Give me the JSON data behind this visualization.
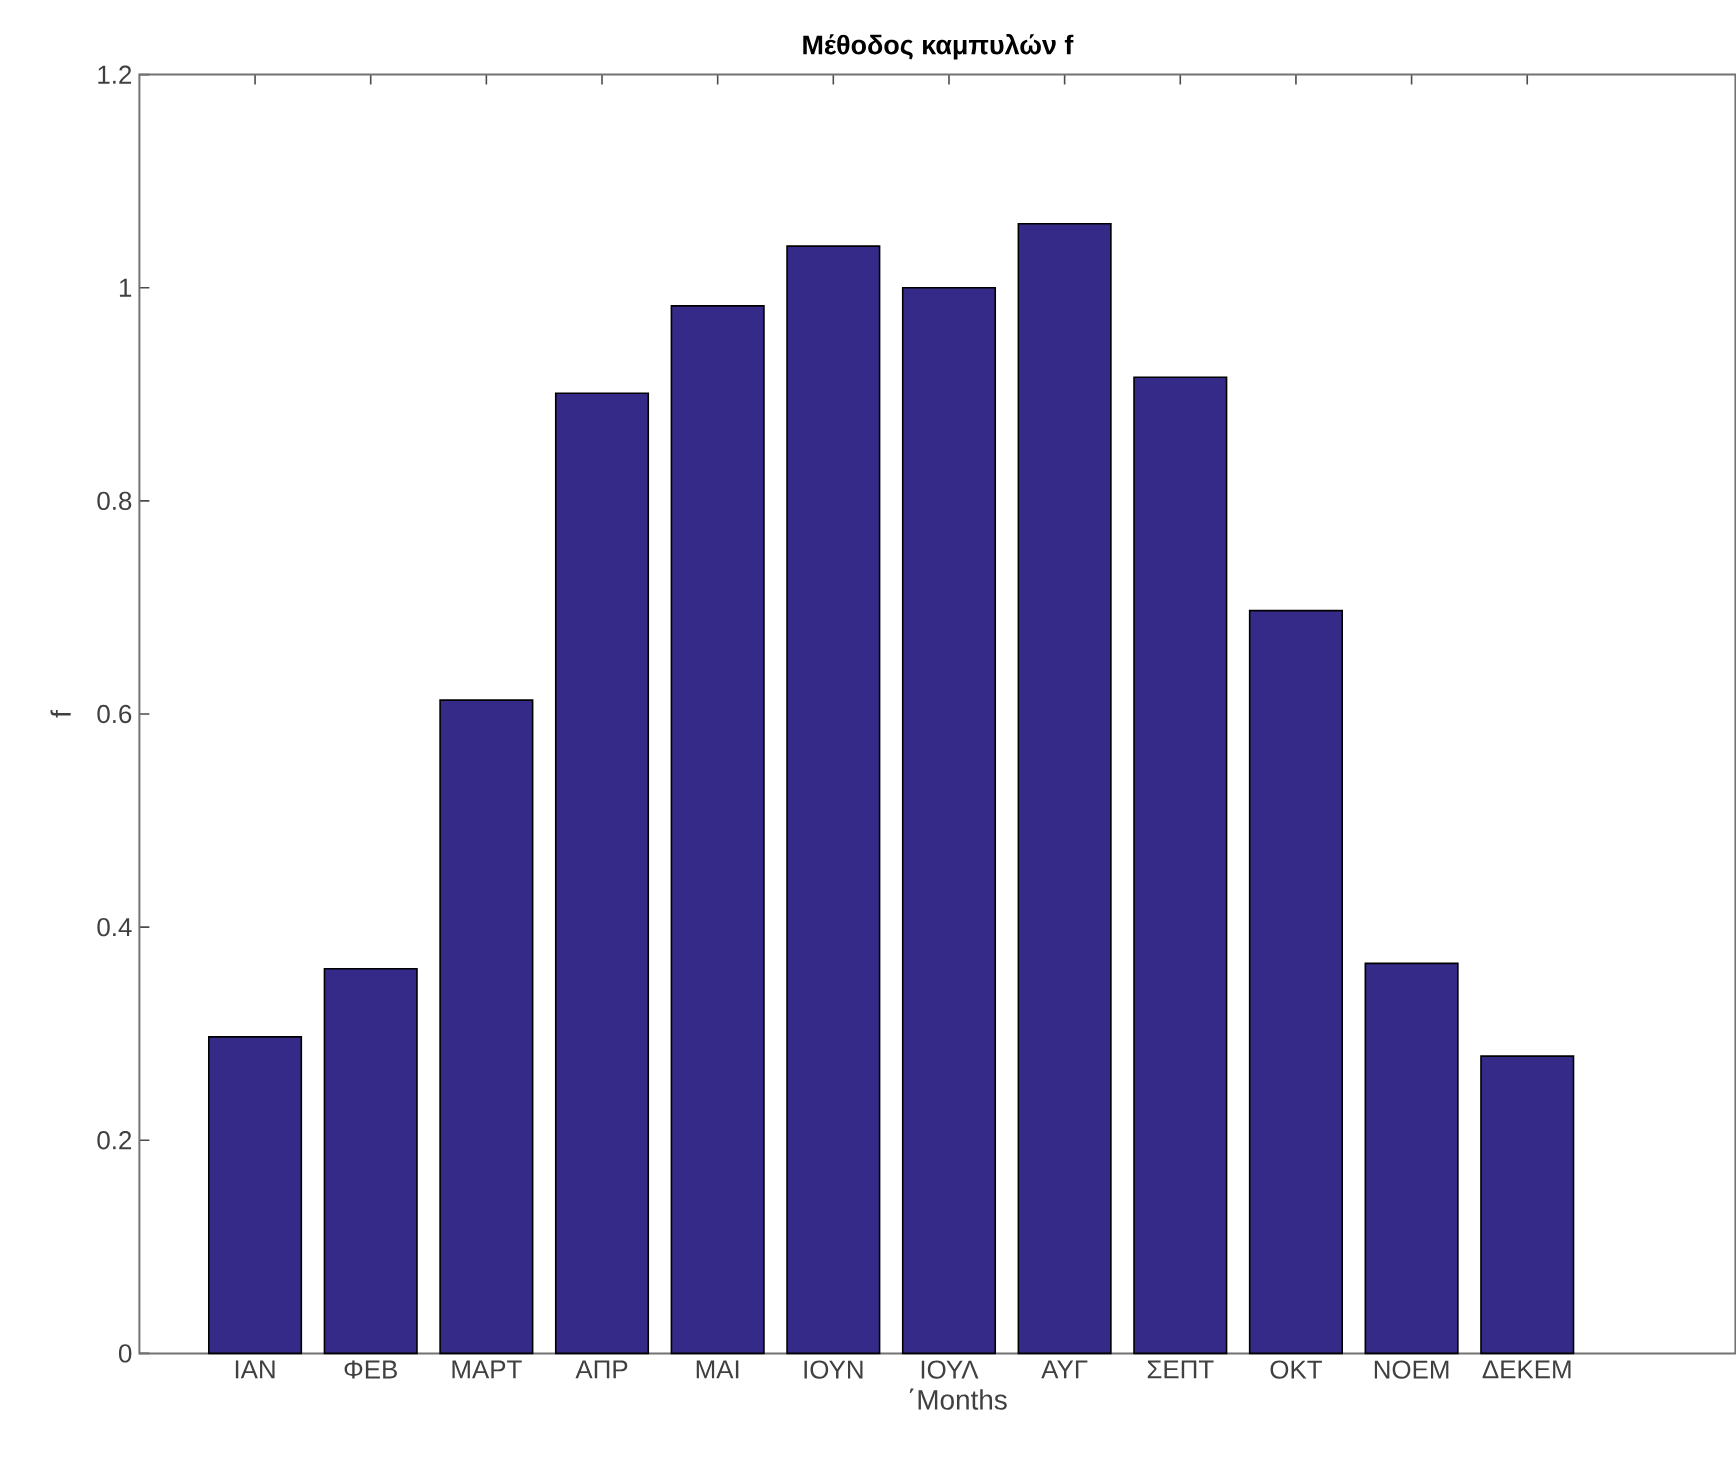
{
  "chart_data": {
    "type": "bar",
    "title": "Μέθοδος καμπυλών f",
    "xlabel": "΄Months",
    "ylabel": "f",
    "categories": [
      "ΙΑΝ",
      "ΦΕΒ",
      "ΜΑΡΤ",
      "ΑΠΡ",
      "ΜΑΙ",
      "ΙΟΥΝ",
      "ΙΟΥΛ",
      "ΑΥΓ",
      "ΣΕΠΤ",
      "ΟΚΤ",
      "ΝΟΕΜ",
      "ΔΕΚΕΜ"
    ],
    "values": [
      0.297,
      0.361,
      0.613,
      0.901,
      0.983,
      1.039,
      1.0,
      1.06,
      0.916,
      0.697,
      0.366,
      0.279
    ],
    "color": "#352a87",
    "ylim": [
      0,
      1.2
    ],
    "yticks": [
      0,
      0.2,
      0.4,
      0.6,
      0.8,
      1,
      1.2
    ],
    "grid": false
  }
}
